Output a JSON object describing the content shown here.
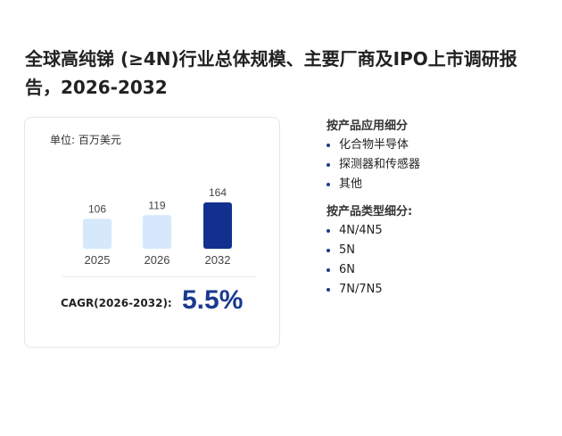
{
  "page": {
    "title": "全球高纯锑 (≥4N)行业总体规模、主要厂商及IPO上市调研报告，2026-2032"
  },
  "card": {
    "unit_label": "单位: 百万美元",
    "cagr_label": "CAGR(2026-2032):",
    "cagr_value": "5.5%"
  },
  "chart_data": {
    "type": "bar",
    "categories": [
      "2025",
      "2026",
      "2032"
    ],
    "values": [
      106,
      119,
      164
    ],
    "value_labels": [
      "106",
      "119",
      "164"
    ],
    "title": "",
    "xlabel": "",
    "ylabel": "",
    "colors": [
      "#d6e8fb",
      "#d6e8fb",
      "#12318f"
    ],
    "grid": false
  },
  "side": {
    "app_title": "按产品应用细分",
    "app_items": [
      "化合物半导体",
      "探测器和传感器",
      "其他"
    ],
    "type_title": "按产品类型细分:",
    "type_items": [
      "4N/4N5",
      "5N",
      "6N",
      "7N/7N5"
    ]
  }
}
